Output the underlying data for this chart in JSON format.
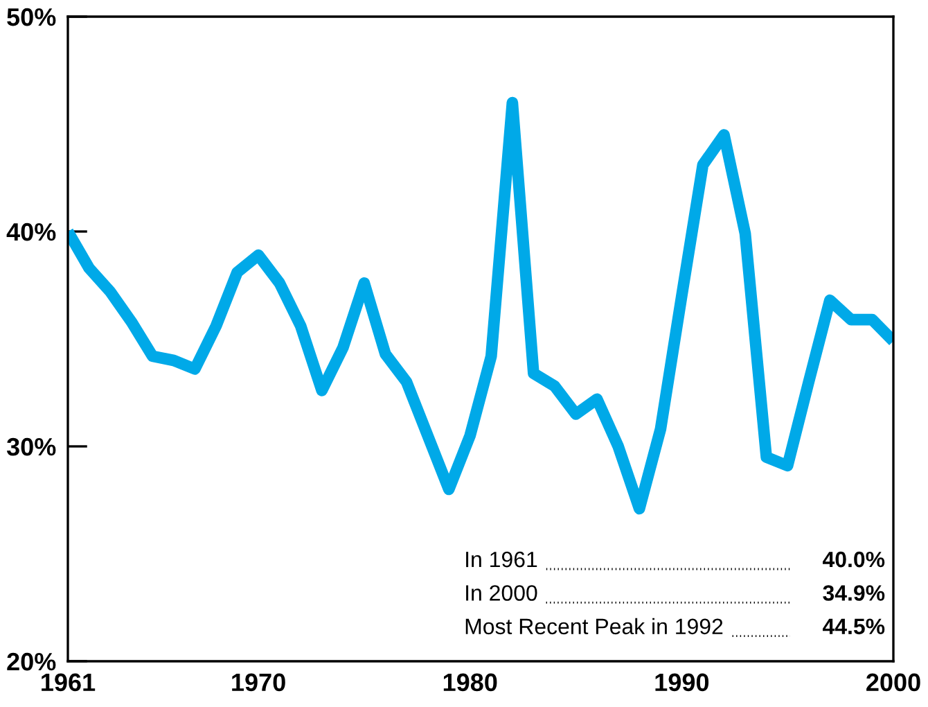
{
  "chart_data": {
    "type": "line",
    "x": [
      1961,
      1962,
      1963,
      1964,
      1965,
      1966,
      1967,
      1968,
      1969,
      1970,
      1971,
      1972,
      1973,
      1974,
      1975,
      1976,
      1977,
      1978,
      1979,
      1980,
      1981,
      1982,
      1983,
      1984,
      1985,
      1986,
      1987,
      1988,
      1989,
      1990,
      1991,
      1992,
      1993,
      1994,
      1995,
      1996,
      1997,
      1998,
      1999,
      2000
    ],
    "series": [
      {
        "color": "#00a9e8",
        "values": [
          40.0,
          38.3,
          37.2,
          35.8,
          34.2,
          34.0,
          33.6,
          35.6,
          38.1,
          38.9,
          37.6,
          35.6,
          32.6,
          34.6,
          37.6,
          34.3,
          33.0,
          30.5,
          28.0,
          30.5,
          34.2,
          46.0,
          33.4,
          32.8,
          31.5,
          32.2,
          30.0,
          27.1,
          30.8,
          37.0,
          43.1,
          44.5,
          39.9,
          29.5,
          29.1,
          33.0,
          36.8,
          35.9,
          35.9,
          34.9
        ]
      }
    ],
    "xlim": [
      1961,
      2000
    ],
    "xticks": [
      1961,
      1970,
      1980,
      1990,
      2000
    ],
    "ylim": [
      20,
      50
    ],
    "yticks": [
      {
        "value": 20,
        "label": "20%"
      },
      {
        "value": 30,
        "label": "30%"
      },
      {
        "value": 40,
        "label": "40%"
      },
      {
        "value": 50,
        "label": "50%"
      }
    ],
    "grid": false,
    "legend": false,
    "marker": "none",
    "line_style": "solid",
    "annotations": [
      "In 1961",
      "40.0%",
      "In 2000",
      "34.9%",
      "Most Recent Peak in 1992",
      "44.5%"
    ]
  }
}
